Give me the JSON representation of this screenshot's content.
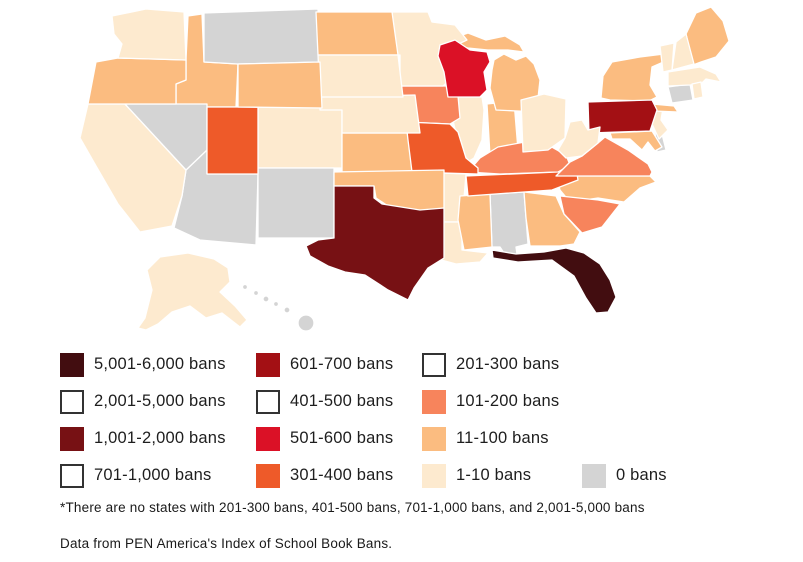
{
  "page": {
    "background": "#ffffff"
  },
  "chart_data": {
    "type": "heatmap",
    "subtype": "us_state_choropleth",
    "unit": "book bans",
    "legend_entries": [
      {
        "range": "5,001-6,000",
        "label": "5,001-6,000 bans",
        "color": "#420d10"
      },
      {
        "range": "2,001-5,000",
        "label": "2,001-5,000 bans",
        "color": "#ffffff"
      },
      {
        "range": "1,001-2,000",
        "label": "1,001-2,000 bans",
        "color": "#771114"
      },
      {
        "range": "701-1,000",
        "label": "701-1,000 bans",
        "color": "#ffffff"
      },
      {
        "range": "601-700",
        "label": "601-700 bans",
        "color": "#a31014"
      },
      {
        "range": "401-500",
        "label": "401-500 bans",
        "color": "#ffffff"
      },
      {
        "range": "501-600",
        "label": "501-600 bans",
        "color": "#db1126"
      },
      {
        "range": "301-400",
        "label": "301-400 bans",
        "color": "#ee5a29"
      },
      {
        "range": "201-300",
        "label": "201-300 bans",
        "color": "#ffffff"
      },
      {
        "range": "101-200",
        "label": "101-200 bans",
        "color": "#f7845c"
      },
      {
        "range": "11-100",
        "label": "11-100 bans",
        "color": "#fbbc80"
      },
      {
        "range": "1-10",
        "label": "1-10 bans",
        "color": "#fdeacf"
      },
      {
        "range": "0",
        "label": "0 bans",
        "color": "#d4d4d4"
      }
    ],
    "states": [
      {
        "code": "AL",
        "name": "Alabama",
        "range": "0"
      },
      {
        "code": "AK",
        "name": "Alaska",
        "range": "1-10"
      },
      {
        "code": "AZ",
        "name": "Arizona",
        "range": "0"
      },
      {
        "code": "AR",
        "name": "Arkansas",
        "range": "1-10"
      },
      {
        "code": "CA",
        "name": "California",
        "range": "1-10"
      },
      {
        "code": "CO",
        "name": "Colorado",
        "range": "1-10"
      },
      {
        "code": "CT",
        "name": "Connecticut",
        "range": "0"
      },
      {
        "code": "DE",
        "name": "Delaware",
        "range": "0"
      },
      {
        "code": "FL",
        "name": "Florida",
        "range": "5,001-6,000"
      },
      {
        "code": "GA",
        "name": "Georgia",
        "range": "11-100"
      },
      {
        "code": "HI",
        "name": "Hawaii",
        "range": "0"
      },
      {
        "code": "ID",
        "name": "Idaho",
        "range": "11-100"
      },
      {
        "code": "IL",
        "name": "Illinois",
        "range": "1-10"
      },
      {
        "code": "IN",
        "name": "Indiana",
        "range": "11-100"
      },
      {
        "code": "IA",
        "name": "Iowa",
        "range": "101-200"
      },
      {
        "code": "KS",
        "name": "Kansas",
        "range": "11-100"
      },
      {
        "code": "KY",
        "name": "Kentucky",
        "range": "101-200"
      },
      {
        "code": "LA",
        "name": "Louisiana",
        "range": "1-10"
      },
      {
        "code": "ME",
        "name": "Maine",
        "range": "11-100"
      },
      {
        "code": "MD",
        "name": "Maryland",
        "range": "11-100"
      },
      {
        "code": "MA",
        "name": "Massachusetts",
        "range": "1-10"
      },
      {
        "code": "MI",
        "name": "Michigan",
        "range": "11-100"
      },
      {
        "code": "MN",
        "name": "Minnesota",
        "range": "1-10"
      },
      {
        "code": "MS",
        "name": "Mississippi",
        "range": "11-100"
      },
      {
        "code": "MO",
        "name": "Missouri",
        "range": "301-400"
      },
      {
        "code": "MT",
        "name": "Montana",
        "range": "0"
      },
      {
        "code": "NE",
        "name": "Nebraska",
        "range": "1-10"
      },
      {
        "code": "NV",
        "name": "Nevada",
        "range": "0"
      },
      {
        "code": "NH",
        "name": "New Hampshire",
        "range": "1-10"
      },
      {
        "code": "NJ",
        "name": "New Jersey",
        "range": "1-10"
      },
      {
        "code": "NM",
        "name": "New Mexico",
        "range": "0"
      },
      {
        "code": "NY",
        "name": "New York",
        "range": "11-100"
      },
      {
        "code": "NC",
        "name": "North Carolina",
        "range": "11-100"
      },
      {
        "code": "ND",
        "name": "North Dakota",
        "range": "11-100"
      },
      {
        "code": "OH",
        "name": "Ohio",
        "range": "1-10"
      },
      {
        "code": "OK",
        "name": "Oklahoma",
        "range": "11-100"
      },
      {
        "code": "OR",
        "name": "Oregon",
        "range": "11-100"
      },
      {
        "code": "PA",
        "name": "Pennsylvania",
        "range": "601-700"
      },
      {
        "code": "RI",
        "name": "Rhode Island",
        "range": "1-10"
      },
      {
        "code": "SC",
        "name": "South Carolina",
        "range": "101-200"
      },
      {
        "code": "SD",
        "name": "South Dakota",
        "range": "1-10"
      },
      {
        "code": "TN",
        "name": "Tennessee",
        "range": "301-400"
      },
      {
        "code": "TX",
        "name": "Texas",
        "range": "1,001-2,000"
      },
      {
        "code": "UT",
        "name": "Utah",
        "range": "301-400"
      },
      {
        "code": "VT",
        "name": "Vermont",
        "range": "1-10"
      },
      {
        "code": "VA",
        "name": "Virginia",
        "range": "101-200"
      },
      {
        "code": "WA",
        "name": "Washington",
        "range": "1-10"
      },
      {
        "code": "WV",
        "name": "West Virginia",
        "range": "1-10"
      },
      {
        "code": "WI",
        "name": "Wisconsin",
        "range": "501-600"
      },
      {
        "code": "WY",
        "name": "Wyoming",
        "range": "11-100"
      }
    ]
  },
  "legend": {
    "columns": [
      {
        "ranges": [
          "5,001-6,000",
          "2,001-5,000",
          "1,001-2,000",
          "701-1,000"
        ]
      },
      {
        "ranges": [
          "601-700",
          "401-500",
          "501-600",
          "301-400"
        ]
      },
      {
        "ranges": [
          "201-300",
          "101-200",
          "11-100",
          "1-10"
        ]
      },
      {
        "ranges": [
          "0"
        ],
        "align": "bottom"
      }
    ]
  },
  "footnote": "*There are no states with 201-300 bans, 401-500 bans, 701-1,000 bans, and 2,001-5,000 bans",
  "source": "Data from PEN America's Index of School Book Bans."
}
